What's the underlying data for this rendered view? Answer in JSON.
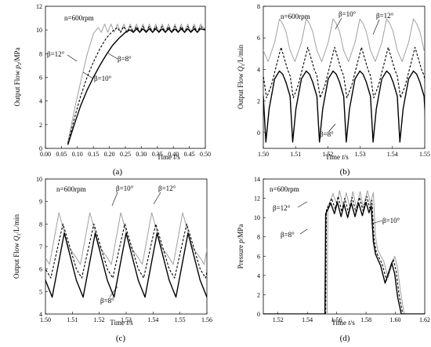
{
  "chart_data": [
    {
      "id": "a",
      "type": "line",
      "caption": "(a)",
      "annotation": "n=600rpm",
      "ylabel": "Output Flow p_2/MPa",
      "ylabel_main": "Output Flow ",
      "ylabel_var": "p",
      "ylabel_sub": "2",
      "ylabel_unit": "/MPa",
      "xlabel_main": "Time ",
      "xlabel_var": "t",
      "xlabel_unit": "/s",
      "xlim": [
        0.0,
        0.5
      ],
      "ylim": [
        0,
        12
      ],
      "xticks": [
        0.0,
        0.05,
        0.1,
        0.15,
        0.2,
        0.25,
        0.3,
        0.35,
        0.4,
        0.45,
        0.5
      ],
      "xtick_labels": [
        "0.00",
        "0.05",
        "0.10",
        "0.15",
        "0.20",
        "0.25",
        "0.30",
        "0.35",
        "0.40",
        "0.45",
        "0.50"
      ],
      "yticks": [
        0,
        2,
        4,
        6,
        8,
        10,
        12
      ],
      "ytick_labels": [
        "0",
        "2",
        "4",
        "6",
        "8",
        "10",
        "12"
      ],
      "series": [
        {
          "name": "β=12°",
          "color": "#a0a0a0",
          "dash": "",
          "width": 1.0,
          "x": [
            0.07,
            0.09,
            0.11,
            0.13,
            0.15,
            0.165,
            0.175,
            0.185,
            0.195,
            0.205,
            0.215,
            0.225,
            0.235,
            0.245,
            0.255,
            0.265,
            0.275,
            0.285,
            0.295,
            0.305,
            0.315,
            0.325,
            0.335,
            0.345,
            0.355,
            0.365,
            0.375,
            0.385,
            0.395,
            0.405,
            0.415,
            0.425,
            0.435,
            0.445,
            0.455,
            0.465,
            0.475,
            0.485,
            0.5
          ],
          "y": [
            0.5,
            3.2,
            5.6,
            7.9,
            9.7,
            10.2,
            9.8,
            10.5,
            9.8,
            10.5,
            9.8,
            10.5,
            9.8,
            10.5,
            9.8,
            10.5,
            9.8,
            10.5,
            9.8,
            10.5,
            9.8,
            10.5,
            9.8,
            10.5,
            9.8,
            10.5,
            9.8,
            10.5,
            9.8,
            10.5,
            9.8,
            10.5,
            9.8,
            10.5,
            9.8,
            10.5,
            9.8,
            10.5,
            10.0
          ]
        },
        {
          "name": "β=10°",
          "color": "#000000",
          "dash": "3,2",
          "width": 1.1,
          "x": [
            0.07,
            0.09,
            0.11,
            0.13,
            0.15,
            0.17,
            0.19,
            0.21,
            0.225,
            0.235,
            0.245,
            0.255,
            0.265,
            0.275,
            0.285,
            0.295,
            0.305,
            0.315,
            0.325,
            0.335,
            0.345,
            0.355,
            0.365,
            0.375,
            0.385,
            0.395,
            0.405,
            0.415,
            0.425,
            0.435,
            0.445,
            0.455,
            0.465,
            0.475,
            0.485,
            0.5
          ],
          "y": [
            0.4,
            2.5,
            4.4,
            6.0,
            7.3,
            8.4,
            9.3,
            9.9,
            10.2,
            9.8,
            10.3,
            9.8,
            10.3,
            9.8,
            10.3,
            9.8,
            10.3,
            9.8,
            10.3,
            9.8,
            10.3,
            9.8,
            10.3,
            9.8,
            10.3,
            9.8,
            10.3,
            9.8,
            10.3,
            9.8,
            10.3,
            9.8,
            10.3,
            9.8,
            10.3,
            10.0
          ]
        },
        {
          "name": "β=8°",
          "color": "#000000",
          "dash": "",
          "width": 1.4,
          "x": [
            0.07,
            0.09,
            0.11,
            0.13,
            0.15,
            0.17,
            0.19,
            0.21,
            0.23,
            0.25,
            0.265,
            0.275,
            0.285,
            0.295,
            0.305,
            0.315,
            0.325,
            0.335,
            0.345,
            0.355,
            0.365,
            0.375,
            0.385,
            0.395,
            0.405,
            0.415,
            0.425,
            0.435,
            0.445,
            0.455,
            0.465,
            0.475,
            0.485,
            0.5
          ],
          "y": [
            0.3,
            2.0,
            3.6,
            4.9,
            6.0,
            7.0,
            7.9,
            8.7,
            9.3,
            9.8,
            10.0,
            9.8,
            10.1,
            9.8,
            10.1,
            9.8,
            10.1,
            9.8,
            10.1,
            9.8,
            10.1,
            9.8,
            10.1,
            9.8,
            10.1,
            9.8,
            10.1,
            9.8,
            10.1,
            9.8,
            10.1,
            9.8,
            10.1,
            10.0
          ]
        }
      ]
    },
    {
      "id": "b",
      "type": "line",
      "caption": "(b)",
      "annotation": "n=600rpm",
      "ylabel_main": "Output Flow ",
      "ylabel_var": "Q",
      "ylabel_sub": "1",
      "ylabel_unit": "/L/min",
      "xlabel_main": "Time ",
      "xlabel_var": "t",
      "xlabel_unit": "/s",
      "xlim": [
        1.5,
        1.55
      ],
      "ylim": [
        -1,
        8
      ],
      "xticks": [
        1.5,
        1.51,
        1.52,
        1.53,
        1.54,
        1.55
      ],
      "xtick_labels": [
        "1.50",
        "1.51",
        "1.52",
        "1.53",
        "1.54",
        "1.55"
      ],
      "yticks": [
        0,
        2,
        4,
        6,
        8
      ],
      "ytick_labels": [
        "0",
        "2",
        "4",
        "6",
        "8"
      ],
      "period": 0.0083,
      "series": [
        {
          "name": "β=12°",
          "color": "#a0a0a0",
          "dash": "",
          "width": 1.0,
          "phase_x": [
            0.0,
            0.0015,
            0.0035,
            0.005,
            0.006,
            0.007,
            0.0083
          ],
          "phase_y": [
            5.2,
            4.5,
            5.7,
            7.2,
            6.9,
            6.4,
            5.2
          ]
        },
        {
          "name": "β=10°",
          "color": "#000000",
          "dash": "3,2",
          "width": 1.1,
          "phase_x": [
            0.0,
            0.001,
            0.0025,
            0.0045,
            0.0055,
            0.0065,
            0.0075,
            0.0083
          ],
          "phase_y": [
            3.6,
            2.2,
            3.0,
            4.6,
            5.4,
            4.7,
            4.0,
            3.6
          ]
        },
        {
          "name": "β=8°",
          "color": "#000000",
          "dash": "",
          "width": 1.4,
          "phase_x": [
            0.0,
            0.0008,
            0.0018,
            0.0035,
            0.005,
            0.006,
            0.007,
            0.0083
          ],
          "phase_y": [
            2.3,
            -0.6,
            1.5,
            3.4,
            3.9,
            3.7,
            3.2,
            2.3
          ]
        }
      ]
    },
    {
      "id": "c",
      "type": "line",
      "caption": "(c)",
      "annotation": "n=600rpm",
      "ylabel_main": "Output Flow ",
      "ylabel_var": "Q",
      "ylabel_sub": "1",
      "ylabel_unit": "/L/min",
      "xlabel_main": "Time ",
      "xlabel_var": "t",
      "xlabel_unit": "/s",
      "xlim": [
        1.5,
        1.56
      ],
      "ylim": [
        4,
        10
      ],
      "xticks": [
        1.5,
        1.51,
        1.52,
        1.53,
        1.54,
        1.55,
        1.56
      ],
      "xtick_labels": [
        "1.50",
        "1.51",
        "1.52",
        "1.53",
        "1.54",
        "1.55",
        "1.56"
      ],
      "yticks": [
        4,
        5,
        6,
        7,
        8,
        9,
        10
      ],
      "ytick_labels": [
        "4",
        "5",
        "6",
        "7",
        "8",
        "9",
        "10"
      ],
      "period": 0.0115,
      "series": [
        {
          "name": "β=12°",
          "color": "#a0a0a0",
          "dash": "",
          "width": 1.0,
          "phase_x": [
            0.0,
            0.0015,
            0.005,
            0.0085,
            0.0115
          ],
          "phase_y": [
            6.5,
            6.2,
            8.5,
            7.0,
            6.5
          ]
        },
        {
          "name": "β=10°",
          "color": "#000000",
          "dash": "3,2",
          "width": 1.1,
          "phase_x": [
            0.0,
            0.002,
            0.0065,
            0.0095,
            0.0115
          ],
          "phase_y": [
            6.0,
            5.6,
            8.0,
            6.8,
            6.0
          ]
        },
        {
          "name": "β=8°",
          "color": "#000000",
          "dash": "",
          "width": 1.4,
          "phase_x": [
            0.0,
            0.0025,
            0.007,
            0.0115
          ],
          "phase_y": [
            5.5,
            4.75,
            7.6,
            5.5
          ]
        }
      ]
    },
    {
      "id": "d",
      "type": "line",
      "caption": "(d)",
      "annotation": "n=600rpm",
      "ylabel_main": "Pressure ",
      "ylabel_var": "p",
      "ylabel_sub": "",
      "ylabel_unit": "/MPa",
      "xlabel_main": "Time ",
      "xlabel_var": "t",
      "xlabel_unit": "/s",
      "xlim": [
        1.51,
        1.62
      ],
      "ylim": [
        0,
        14
      ],
      "xticks": [
        1.52,
        1.54,
        1.56,
        1.58,
        1.6,
        1.62
      ],
      "xtick_labels": [
        "1.52",
        "1.54",
        "1.56",
        "1.58",
        "1.60",
        "1.62"
      ],
      "yticks": [
        0,
        2,
        4,
        6,
        8,
        10,
        12,
        14
      ],
      "ytick_labels": [
        "0",
        "2",
        "4",
        "6",
        "8",
        "10",
        "12",
        "14"
      ],
      "series": [
        {
          "name": "β=12°",
          "color": "#a0a0a0",
          "dash": "",
          "width": 1.0,
          "x": [
            1.51,
            1.5535,
            1.554,
            1.556,
            1.5575,
            1.56,
            1.562,
            1.5645,
            1.5665,
            1.569,
            1.571,
            1.5735,
            1.576,
            1.578,
            1.581,
            1.583,
            1.585,
            1.5865,
            1.588,
            1.592,
            1.595,
            1.598,
            1.5995,
            1.6015,
            1.6035,
            1.606,
            1.62
          ],
          "y": [
            0,
            0,
            11.2,
            11.8,
            12.5,
            11.4,
            12.8,
            11.0,
            12.6,
            11.0,
            12.7,
            11.0,
            12.7,
            11.1,
            12.8,
            11.5,
            12.6,
            8.0,
            6.6,
            5.5,
            3.8,
            5.2,
            6.0,
            4.8,
            2.3,
            0.0,
            0.0
          ]
        },
        {
          "name": "β=10°",
          "color": "#000000",
          "dash": "3,2",
          "width": 1.1,
          "x": [
            1.51,
            1.5525,
            1.553,
            1.555,
            1.5565,
            1.559,
            1.561,
            1.5635,
            1.5655,
            1.568,
            1.5705,
            1.573,
            1.5755,
            1.578,
            1.5805,
            1.5825,
            1.584,
            1.5855,
            1.587,
            1.591,
            1.594,
            1.597,
            1.5985,
            1.6005,
            1.6025,
            1.605,
            1.62
          ],
          "y": [
            0,
            0,
            10.8,
            11.4,
            12.0,
            10.9,
            12.2,
            10.6,
            12.0,
            10.5,
            12.1,
            10.6,
            12.1,
            10.7,
            12.2,
            11.0,
            11.8,
            7.8,
            6.4,
            5.2,
            3.5,
            5.0,
            5.7,
            4.5,
            2.0,
            0.0,
            0.0
          ]
        },
        {
          "name": "β=8°",
          "color": "#000000",
          "dash": "",
          "width": 1.4,
          "x": [
            1.51,
            1.552,
            1.5525,
            1.5545,
            1.556,
            1.5585,
            1.5605,
            1.563,
            1.565,
            1.5675,
            1.57,
            1.5725,
            1.575,
            1.5775,
            1.58,
            1.582,
            1.5835,
            1.585,
            1.5865,
            1.59,
            1.593,
            1.596,
            1.5975,
            1.5995,
            1.6015,
            1.604,
            1.62
          ],
          "y": [
            0,
            0,
            10.4,
            11.0,
            11.5,
            10.4,
            11.6,
            10.1,
            11.4,
            10.0,
            11.5,
            10.1,
            11.5,
            10.2,
            11.6,
            10.5,
            11.2,
            7.5,
            6.2,
            5.0,
            3.2,
            4.6,
            5.3,
            4.2,
            1.8,
            0.0,
            0.0
          ]
        }
      ]
    }
  ],
  "labels": {
    "a": {
      "b12": "β=12°",
      "b10": "β=10°",
      "b8": "β=8°"
    },
    "b": {
      "b10": "β=10°",
      "b12": "β=12°",
      "b8": "β=8°"
    },
    "c": {
      "b10": "β=10°",
      "b12": "β=12°",
      "b8": "β=8°"
    },
    "d": {
      "b12": "β=12°",
      "b10": "β=10°",
      "b8": "β=8°"
    }
  }
}
